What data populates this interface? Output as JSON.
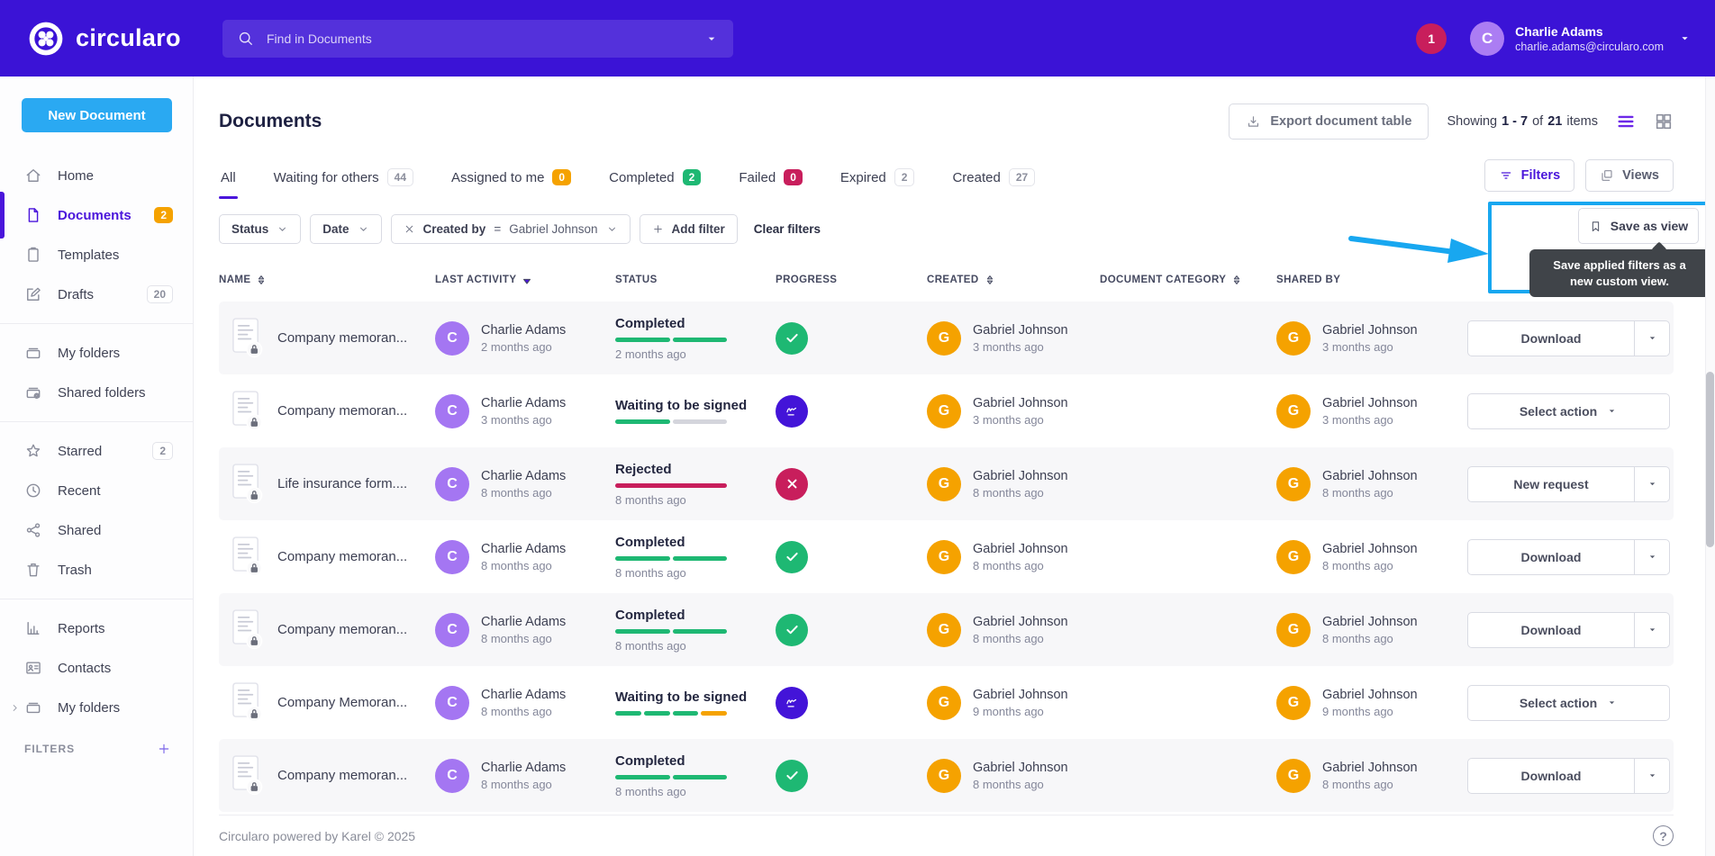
{
  "navbar": {
    "brand": "circularo",
    "search_placeholder": "Find in Documents",
    "notification_count": "1",
    "user": {
      "initial": "C",
      "name": "Charlie Adams",
      "email": "charlie.adams@circularo.com"
    }
  },
  "sidebar": {
    "new_document": "New Document",
    "filters_label": "FILTERS",
    "items": [
      {
        "icon": "home",
        "label": "Home"
      },
      {
        "icon": "document",
        "label": "Documents",
        "active": true,
        "badge": "2",
        "badge_style": "orange"
      },
      {
        "icon": "template",
        "label": "Templates"
      },
      {
        "icon": "draft",
        "label": "Drafts",
        "badge": "20",
        "badge_style": "plain"
      },
      {
        "divider": true
      },
      {
        "icon": "folder",
        "label": "My folders"
      },
      {
        "icon": "sharedfolder",
        "label": "Shared folders"
      },
      {
        "divider": true
      },
      {
        "icon": "star",
        "label": "Starred",
        "badge": "2",
        "badge_style": "plain"
      },
      {
        "icon": "clock",
        "label": "Recent"
      },
      {
        "icon": "share",
        "label": "Shared"
      },
      {
        "icon": "trash",
        "label": "Trash"
      },
      {
        "divider": true
      },
      {
        "icon": "chart",
        "label": "Reports"
      },
      {
        "icon": "contacts",
        "label": "Contacts"
      },
      {
        "icon": "folder",
        "label": "My folders",
        "chevron": true
      }
    ]
  },
  "page": {
    "title": "Documents",
    "export_label": "Export document table",
    "showing": {
      "prefix": "Showing",
      "range": "1 - 7",
      "of": "of",
      "total": "21",
      "suffix": "items"
    }
  },
  "tabs": [
    {
      "label": "All",
      "active": true
    },
    {
      "label": "Waiting for others",
      "badge": "44",
      "badge_style": "plain"
    },
    {
      "label": "Assigned to me",
      "badge": "0",
      "badge_style": "orange"
    },
    {
      "label": "Completed",
      "badge": "2",
      "badge_style": "green"
    },
    {
      "label": "Failed",
      "badge": "0",
      "badge_style": "crimson"
    },
    {
      "label": "Expired",
      "badge": "2",
      "badge_style": "plain"
    },
    {
      "label": "Created",
      "badge": "27",
      "badge_style": "plain"
    }
  ],
  "toolbar": {
    "filters_label": "Filters",
    "views_label": "Views"
  },
  "filter_chips": [
    {
      "label": "Status",
      "caret": true
    },
    {
      "label": "Date",
      "caret": true
    },
    {
      "close": true,
      "label": "Created by",
      "bold": true,
      "operator": "=",
      "value": "Gabriel Johnson",
      "caret": true
    },
    {
      "plus": true,
      "label": "Add filter"
    }
  ],
  "clear_filters_label": "Clear filters",
  "save_view": {
    "button_label": "Save as view",
    "tooltip": "Save applied filters as a new custom view."
  },
  "avatar_colors": {
    "C": "#a476f2",
    "G": "#f5a200"
  },
  "table": {
    "columns": [
      {
        "label": "NAME",
        "sort": "both"
      },
      {
        "label": "LAST ACTIVITY",
        "sort": "desc"
      },
      {
        "label": "STATUS"
      },
      {
        "label": "PROGRESS"
      },
      {
        "label": "CREATED",
        "sort": "both"
      },
      {
        "label": "DOCUMENT CATEGORY",
        "sort": "both"
      },
      {
        "label": "SHARED BY"
      },
      {
        "label": ""
      }
    ],
    "rows": [
      {
        "name": "Company memoran...",
        "activity": {
          "initial": "C",
          "name": "Charlie Adams",
          "time": "2 months ago"
        },
        "status": {
          "label": "Completed",
          "time": "2 months ago",
          "segments": [
            "green",
            "green"
          ]
        },
        "progress_icon": "check",
        "created": {
          "initial": "G",
          "name": "Gabriel Johnson",
          "time": "3 months ago"
        },
        "category": "",
        "shared": {
          "initial": "G",
          "name": "Gabriel Johnson",
          "time": "3 months ago"
        },
        "action": {
          "label": "Download",
          "split": true
        }
      },
      {
        "name": "Company memoran...",
        "activity": {
          "initial": "C",
          "name": "Charlie Adams",
          "time": "3 months ago"
        },
        "status": {
          "label": "Waiting to be signed",
          "time": "",
          "segments": [
            "green",
            "gray"
          ]
        },
        "progress_icon": "pen",
        "created": {
          "initial": "G",
          "name": "Gabriel Johnson",
          "time": "3 months ago"
        },
        "category": "",
        "shared": {
          "initial": "G",
          "name": "Gabriel Johnson",
          "time": "3 months ago"
        },
        "action": {
          "label": "Select action",
          "split": false
        }
      },
      {
        "name": "Life insurance form....",
        "activity": {
          "initial": "C",
          "name": "Charlie Adams",
          "time": "8 months ago"
        },
        "status": {
          "label": "Rejected",
          "time": "8 months ago",
          "segments": [
            "red"
          ]
        },
        "progress_icon": "cross",
        "created": {
          "initial": "G",
          "name": "Gabriel Johnson",
          "time": "8 months ago"
        },
        "category": "",
        "shared": {
          "initial": "G",
          "name": "Gabriel Johnson",
          "time": "8 months ago"
        },
        "action": {
          "label": "New request",
          "split": true
        }
      },
      {
        "name": "Company memoran...",
        "activity": {
          "initial": "C",
          "name": "Charlie Adams",
          "time": "8 months ago"
        },
        "status": {
          "label": "Completed",
          "time": "8 months ago",
          "segments": [
            "green",
            "green"
          ]
        },
        "progress_icon": "check",
        "created": {
          "initial": "G",
          "name": "Gabriel Johnson",
          "time": "8 months ago"
        },
        "category": "",
        "shared": {
          "initial": "G",
          "name": "Gabriel Johnson",
          "time": "8 months ago"
        },
        "action": {
          "label": "Download",
          "split": true
        }
      },
      {
        "name": "Company memoran...",
        "activity": {
          "initial": "C",
          "name": "Charlie Adams",
          "time": "8 months ago"
        },
        "status": {
          "label": "Completed",
          "time": "8 months ago",
          "segments": [
            "green",
            "green"
          ]
        },
        "progress_icon": "check",
        "created": {
          "initial": "G",
          "name": "Gabriel Johnson",
          "time": "8 months ago"
        },
        "category": "",
        "shared": {
          "initial": "G",
          "name": "Gabriel Johnson",
          "time": "8 months ago"
        },
        "action": {
          "label": "Download",
          "split": true
        }
      },
      {
        "name": "Company Memoran...",
        "activity": {
          "initial": "C",
          "name": "Charlie Adams",
          "time": "8 months ago"
        },
        "status": {
          "label": "Waiting to be signed",
          "time": "",
          "segments": [
            "green",
            "green",
            "green",
            "orange"
          ]
        },
        "progress_icon": "pen",
        "created": {
          "initial": "G",
          "name": "Gabriel Johnson",
          "time": "9 months ago"
        },
        "category": "",
        "shared": {
          "initial": "G",
          "name": "Gabriel Johnson",
          "time": "9 months ago"
        },
        "action": {
          "label": "Select action",
          "split": false
        }
      },
      {
        "name": "Company memoran...",
        "activity": {
          "initial": "C",
          "name": "Charlie Adams",
          "time": "8 months ago"
        },
        "status": {
          "label": "Completed",
          "time": "8 months ago",
          "segments": [
            "green",
            "green"
          ]
        },
        "progress_icon": "check",
        "created": {
          "initial": "G",
          "name": "Gabriel Johnson",
          "time": "8 months ago"
        },
        "category": "",
        "shared": {
          "initial": "G",
          "name": "Gabriel Johnson",
          "time": "8 months ago"
        },
        "action": {
          "label": "Download",
          "split": true
        }
      }
    ]
  },
  "footer": {
    "text": "Circularo powered by Karel © 2025"
  }
}
